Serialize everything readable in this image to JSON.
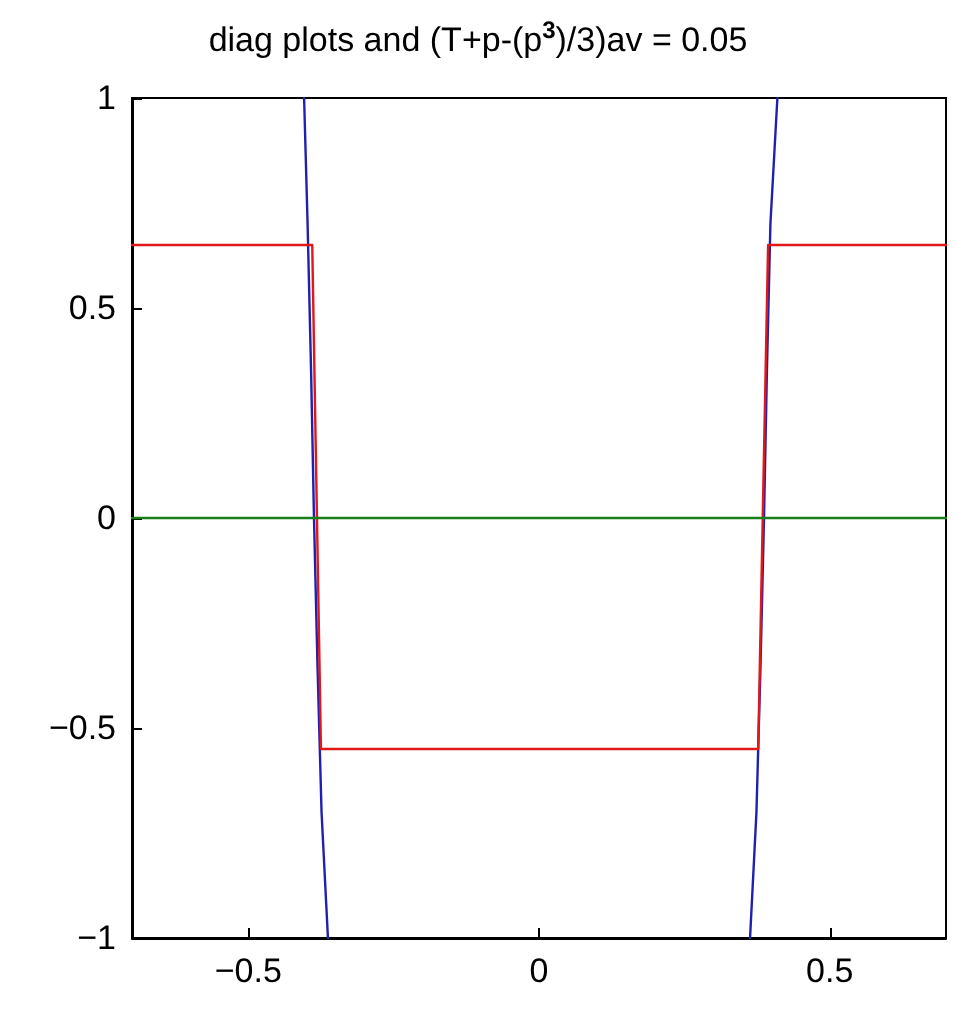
{
  "chart_data": {
    "type": "line",
    "title": "diag plots and (T+p-(p$^{3}$)/3)av = 0.05",
    "xlim": [
      -0.7,
      0.7
    ],
    "xticks": [
      -0.5,
      0,
      0.5
    ],
    "ylim": [
      -1,
      1
    ],
    "yticks": [
      -1,
      -0.5,
      0,
      0.5,
      1
    ],
    "marker": "none",
    "line_style": "solid",
    "series": [
      {
        "color": "#2020b0",
        "x": [
          -0.404,
          -0.398,
          -0.392,
          -0.387,
          -0.381,
          -0.374,
          -0.363,
          null,
          0.363,
          0.374,
          0.381,
          0.387,
          0.392,
          0.398,
          0.41
        ],
        "values": [
          1,
          0.7,
          0.35,
          0,
          -0.35,
          -0.7,
          -1,
          null,
          -1,
          -0.7,
          -0.35,
          0,
          0.35,
          0.7,
          1
        ]
      },
      {
        "color": "#e01818",
        "x": [
          -0.7,
          -0.39,
          -0.375,
          0.377,
          0.394,
          0.7
        ],
        "values": [
          0.65,
          0.65,
          -0.55,
          -0.55,
          0.65,
          0.65
        ]
      },
      {
        "color": "#188018",
        "x": [
          -0.7,
          0.7
        ],
        "values": [
          0,
          0
        ]
      }
    ]
  }
}
